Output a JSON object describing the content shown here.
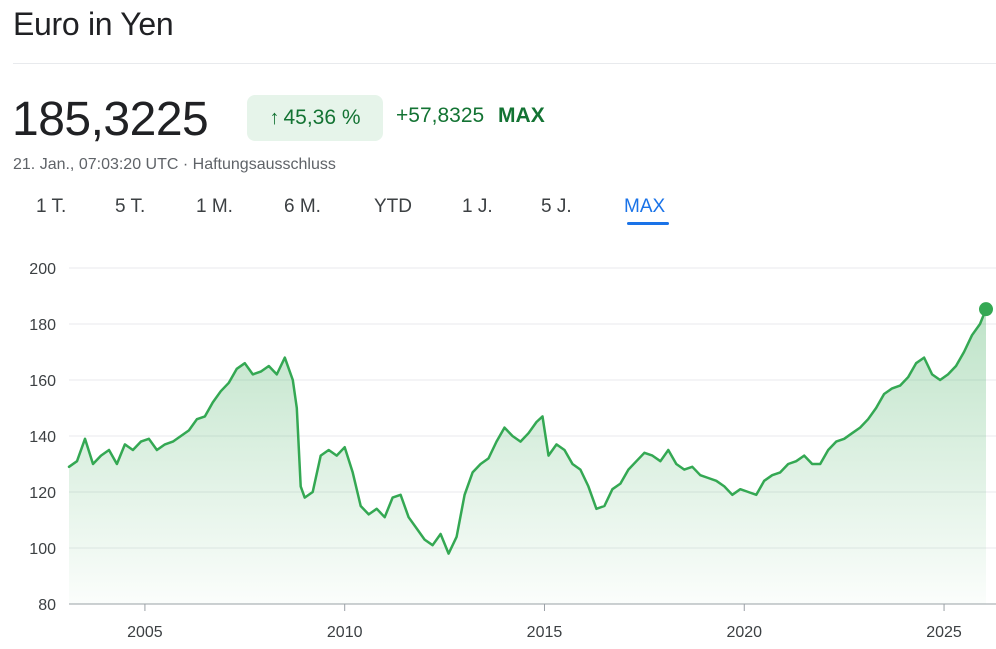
{
  "header": {
    "title": "Euro in Yen"
  },
  "quote": {
    "price": "185,3225",
    "percent_change": "45,36 %",
    "absolute_change": "+57,8325",
    "range_label": "MAX",
    "timestamp": "21. Jan., 07:03:20 UTC",
    "separator": " · ",
    "disclaimer": "Haftungsausschluss",
    "up_color": "#137333",
    "badge_color": "#e6f4ea"
  },
  "tabs": [
    {
      "label": "1 T."
    },
    {
      "label": "5 T."
    },
    {
      "label": "1 M."
    },
    {
      "label": "6 M."
    },
    {
      "label": "YTD"
    },
    {
      "label": "1 J."
    },
    {
      "label": "5 J."
    },
    {
      "label": "MAX",
      "active": true
    }
  ],
  "chart_data": {
    "type": "area",
    "title": "",
    "xlabel": "",
    "ylabel": "",
    "ylim": [
      80,
      200
    ],
    "xlim": [
      2003.1,
      2026.05
    ],
    "y_ticks": [
      80,
      100,
      120,
      140,
      160,
      180,
      200
    ],
    "x_ticks": [
      2005,
      2010,
      2015,
      2020,
      2025
    ],
    "grid": true,
    "line_color": "#34a853",
    "series": [
      {
        "x": [
          2003.1,
          2003.3,
          2003.5,
          2003.7,
          2003.9,
          2004.1,
          2004.3,
          2004.5,
          2004.7,
          2004.9,
          2005.1,
          2005.3,
          2005.5,
          2005.7,
          2005.9,
          2006.1,
          2006.3,
          2006.5,
          2006.7,
          2006.9,
          2007.1,
          2007.3,
          2007.5,
          2007.7,
          2007.9,
          2008.1,
          2008.3,
          2008.5,
          2008.7,
          2008.8,
          2008.9,
          2009.0,
          2009.2,
          2009.4,
          2009.6,
          2009.8,
          2010.0,
          2010.2,
          2010.4,
          2010.6,
          2010.8,
          2011.0,
          2011.2,
          2011.4,
          2011.6,
          2011.8,
          2012.0,
          2012.2,
          2012.4,
          2012.6,
          2012.8,
          2013.0,
          2013.2,
          2013.4,
          2013.6,
          2013.8,
          2014.0,
          2014.2,
          2014.4,
          2014.6,
          2014.8,
          2014.95,
          2015.1,
          2015.3,
          2015.5,
          2015.7,
          2015.9,
          2016.1,
          2016.3,
          2016.5,
          2016.7,
          2016.9,
          2017.1,
          2017.3,
          2017.5,
          2017.7,
          2017.9,
          2018.1,
          2018.3,
          2018.5,
          2018.7,
          2018.9,
          2019.1,
          2019.3,
          2019.5,
          2019.7,
          2019.9,
          2020.1,
          2020.3,
          2020.5,
          2020.7,
          2020.9,
          2021.1,
          2021.3,
          2021.5,
          2021.7,
          2021.9,
          2022.1,
          2022.3,
          2022.5,
          2022.7,
          2022.9,
          2023.1,
          2023.3,
          2023.5,
          2023.7,
          2023.9,
          2024.1,
          2024.3,
          2024.5,
          2024.7,
          2024.9,
          2025.1,
          2025.3,
          2025.5,
          2025.7,
          2025.9,
          2026.05
        ],
        "y": [
          129,
          131,
          139,
          130,
          133,
          135,
          130,
          137,
          135,
          138,
          139,
          135,
          137,
          138,
          140,
          142,
          146,
          147,
          152,
          156,
          159,
          164,
          166,
          162,
          163,
          165,
          162,
          168,
          160,
          150,
          122,
          118,
          120,
          133,
          135,
          133,
          136,
          127,
          115,
          112,
          114,
          111,
          118,
          119,
          111,
          107,
          103,
          101,
          105,
          98,
          104,
          119,
          127,
          130,
          132,
          138,
          143,
          140,
          138,
          141,
          145,
          147,
          133,
          137,
          135,
          130,
          128,
          122,
          114,
          115,
          121,
          123,
          128,
          131,
          134,
          133,
          131,
          135,
          130,
          128,
          129,
          126,
          125,
          124,
          122,
          119,
          121,
          120,
          119,
          124,
          126,
          127,
          130,
          131,
          133,
          130,
          130,
          135,
          138,
          139,
          141,
          143,
          146,
          150,
          155,
          157,
          158,
          161,
          166,
          168,
          162,
          160,
          162,
          165,
          170,
          176,
          180,
          185.3
        ]
      }
    ]
  }
}
